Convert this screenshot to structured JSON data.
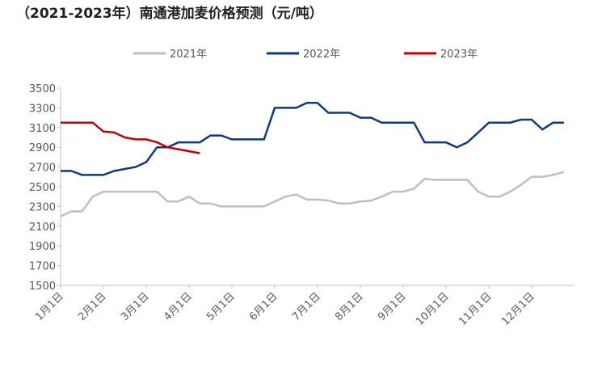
{
  "chart_data": {
    "type": "line",
    "title": "（2021-2023年）南通港加麦价格预测（元/吨）",
    "categories": [
      "1月1日",
      null,
      null,
      null,
      "2月1日",
      null,
      null,
      null,
      "3月1日",
      null,
      null,
      null,
      "4月1日",
      null,
      null,
      null,
      "5月1日",
      null,
      null,
      null,
      "6月1日",
      null,
      null,
      null,
      "7月1日",
      null,
      null,
      null,
      "8月1日",
      null,
      null,
      null,
      "9月1日",
      null,
      null,
      null,
      "10月1日",
      null,
      null,
      null,
      "11月1日",
      null,
      null,
      null,
      "12月1日",
      null,
      null,
      null
    ],
    "series": [
      {
        "name": "2021年",
        "color": "#bfbfbf",
        "values": [
          2200,
          2250,
          2250,
          2400,
          2450,
          2450,
          2450,
          2450,
          2450,
          2450,
          2350,
          2350,
          2400,
          2330,
          2330,
          2300,
          2300,
          2300,
          2300,
          2300,
          2350,
          2400,
          2420,
          2370,
          2370,
          2360,
          2330,
          2330,
          2350,
          2360,
          2400,
          2450,
          2450,
          2480,
          2580,
          2570,
          2570,
          2570,
          2570,
          2450,
          2400,
          2400,
          2450,
          2520,
          2600,
          2600,
          2620,
          2650
        ]
      },
      {
        "name": "2022年",
        "color": "#0e3a78",
        "values": [
          2660,
          2660,
          2620,
          2620,
          2620,
          2660,
          2680,
          2700,
          2750,
          2900,
          2900,
          2950,
          2950,
          2950,
          3020,
          3020,
          2980,
          2980,
          2980,
          2980,
          3300,
          3300,
          3300,
          3350,
          3350,
          3250,
          3250,
          3250,
          3200,
          3200,
          3150,
          3150,
          3150,
          3150,
          2950,
          2950,
          2950,
          2900,
          2950,
          3050,
          3150,
          3150,
          3150,
          3180,
          3180,
          3080,
          3150,
          3150
        ]
      },
      {
        "name": "2023年",
        "color": "#c00000",
        "values": [
          3150,
          3150,
          3150,
          3150,
          3060,
          3050,
          3000,
          2980,
          2980,
          2950,
          2900,
          2880,
          2860,
          2840,
          null,
          null,
          null,
          null,
          null,
          null,
          null,
          null,
          null,
          null,
          null,
          null,
          null,
          null,
          null,
          null,
          null,
          null,
          null,
          null,
          null,
          null,
          null,
          null,
          null,
          null,
          null,
          null,
          null,
          null,
          null,
          null,
          null,
          null
        ]
      }
    ],
    "ylim": [
      1500,
      3500
    ],
    "yticks": [
      1500,
      1700,
      1900,
      2100,
      2300,
      2500,
      2700,
      2900,
      3100,
      3300,
      3500
    ]
  }
}
